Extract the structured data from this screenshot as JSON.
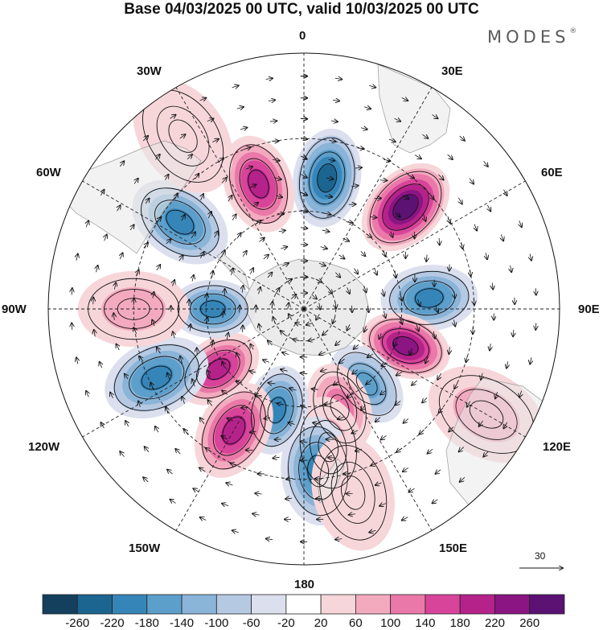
{
  "title": "Base 04/03/2025 00 UTC, valid 10/03/2025 00 UTC",
  "brand": "MODES",
  "brand_mark": "®",
  "projection": "south polar stereographic",
  "longitude_labels": {
    "lon_0": "0",
    "lon_30e": "30E",
    "lon_60e": "60E",
    "lon_90e": "90E",
    "lon_120e": "120E",
    "lon_150e": "150E",
    "lon_180": "180",
    "lon_150w": "150W",
    "lon_120w": "120W",
    "lon_90w": "90W",
    "lon_60w": "60W",
    "lon_30w": "30W"
  },
  "vector_reference": "30",
  "colorbar": {
    "ticks": [
      "-260",
      "-220",
      "-180",
      "-140",
      "-100",
      "-60",
      "-20",
      "20",
      "60",
      "100",
      "140",
      "180",
      "220",
      "260"
    ],
    "colors": [
      "#14405e",
      "#1c6590",
      "#3685b8",
      "#5d9fcb",
      "#8ab4d8",
      "#b6c9e3",
      "#dcdfee",
      "#ffffff",
      "#f7d6da",
      "#f3aabf",
      "#ea78a8",
      "#d8449a",
      "#b5228a",
      "#8a1583",
      "#5b1273"
    ]
  },
  "colors": {
    "land": "#e8e8e8",
    "coast": "#888888",
    "grid": "#222222"
  },
  "anomaly_centers": [
    {
      "lon": 10,
      "lat": -50,
      "value": -220
    },
    {
      "lon": 45,
      "lat": -47,
      "value": 260
    },
    {
      "lon": 85,
      "lat": -52,
      "value": -200
    },
    {
      "lon": 110,
      "lat": -57,
      "value": 240
    },
    {
      "lon": 140,
      "lat": -60,
      "value": -140
    },
    {
      "lon": 160,
      "lat": -58,
      "value": 120
    },
    {
      "lon": 170,
      "lat": -48,
      "value": 80
    },
    {
      "lon": 175,
      "lat": -42,
      "value": -200
    },
    {
      "lon": 165,
      "lat": -35,
      "value": 40
    },
    {
      "lon": -165,
      "lat": -58,
      "value": -180
    },
    {
      "lon": -150,
      "lat": -48,
      "value": 180
    },
    {
      "lon": -125,
      "lat": -58,
      "value": 200
    },
    {
      "lon": -115,
      "lat": -42,
      "value": -200
    },
    {
      "lon": -90,
      "lat": -62,
      "value": -180
    },
    {
      "lon": -90,
      "lat": -40,
      "value": 80
    },
    {
      "lon": -55,
      "lat": -45,
      "value": -200
    },
    {
      "lon": -20,
      "lat": -50,
      "value": 180
    },
    {
      "lon": -35,
      "lat": -30,
      "value": 40
    },
    {
      "lon": 120,
      "lat": -30,
      "value": 60
    }
  ]
}
